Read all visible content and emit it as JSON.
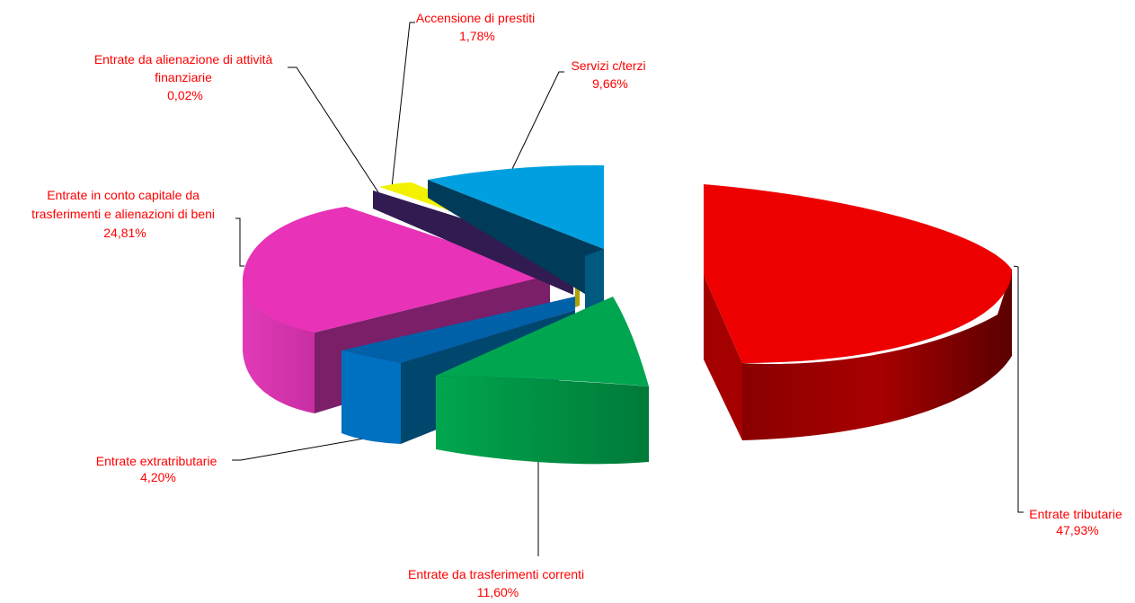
{
  "chart_data": {
    "type": "pie",
    "style": "3d-exploded",
    "title": "",
    "legend": "none",
    "label_color": "#ff0000",
    "slices": [
      {
        "label": "Entrate tributarie",
        "value": 47.93,
        "value_label": "47,93%",
        "color": "#ee0000"
      },
      {
        "label": "Entrate da trasferimenti correnti",
        "value": 11.6,
        "value_label": "11,60%",
        "color": "#00a64f"
      },
      {
        "label": "Entrate extratributarie",
        "value": 4.2,
        "value_label": "4,20%",
        "color": "#0070c0"
      },
      {
        "label": "Entrate in conto capitale da trasferimenti e alienazioni di beni",
        "value": 24.81,
        "value_label": "24,81%",
        "color": "#e832b8"
      },
      {
        "label": "Entrate da alienazione di attività finanziarie",
        "value": 0.02,
        "value_label": "0,02%",
        "color": "#e0e020"
      },
      {
        "label": "Accensione di prestiti",
        "value": 1.78,
        "value_label": "1,78%",
        "color": "#ffff00"
      },
      {
        "label": "Servizi c/terzi",
        "value": 9.66,
        "value_label": "9,66%",
        "color": "#00a0e0"
      }
    ]
  }
}
